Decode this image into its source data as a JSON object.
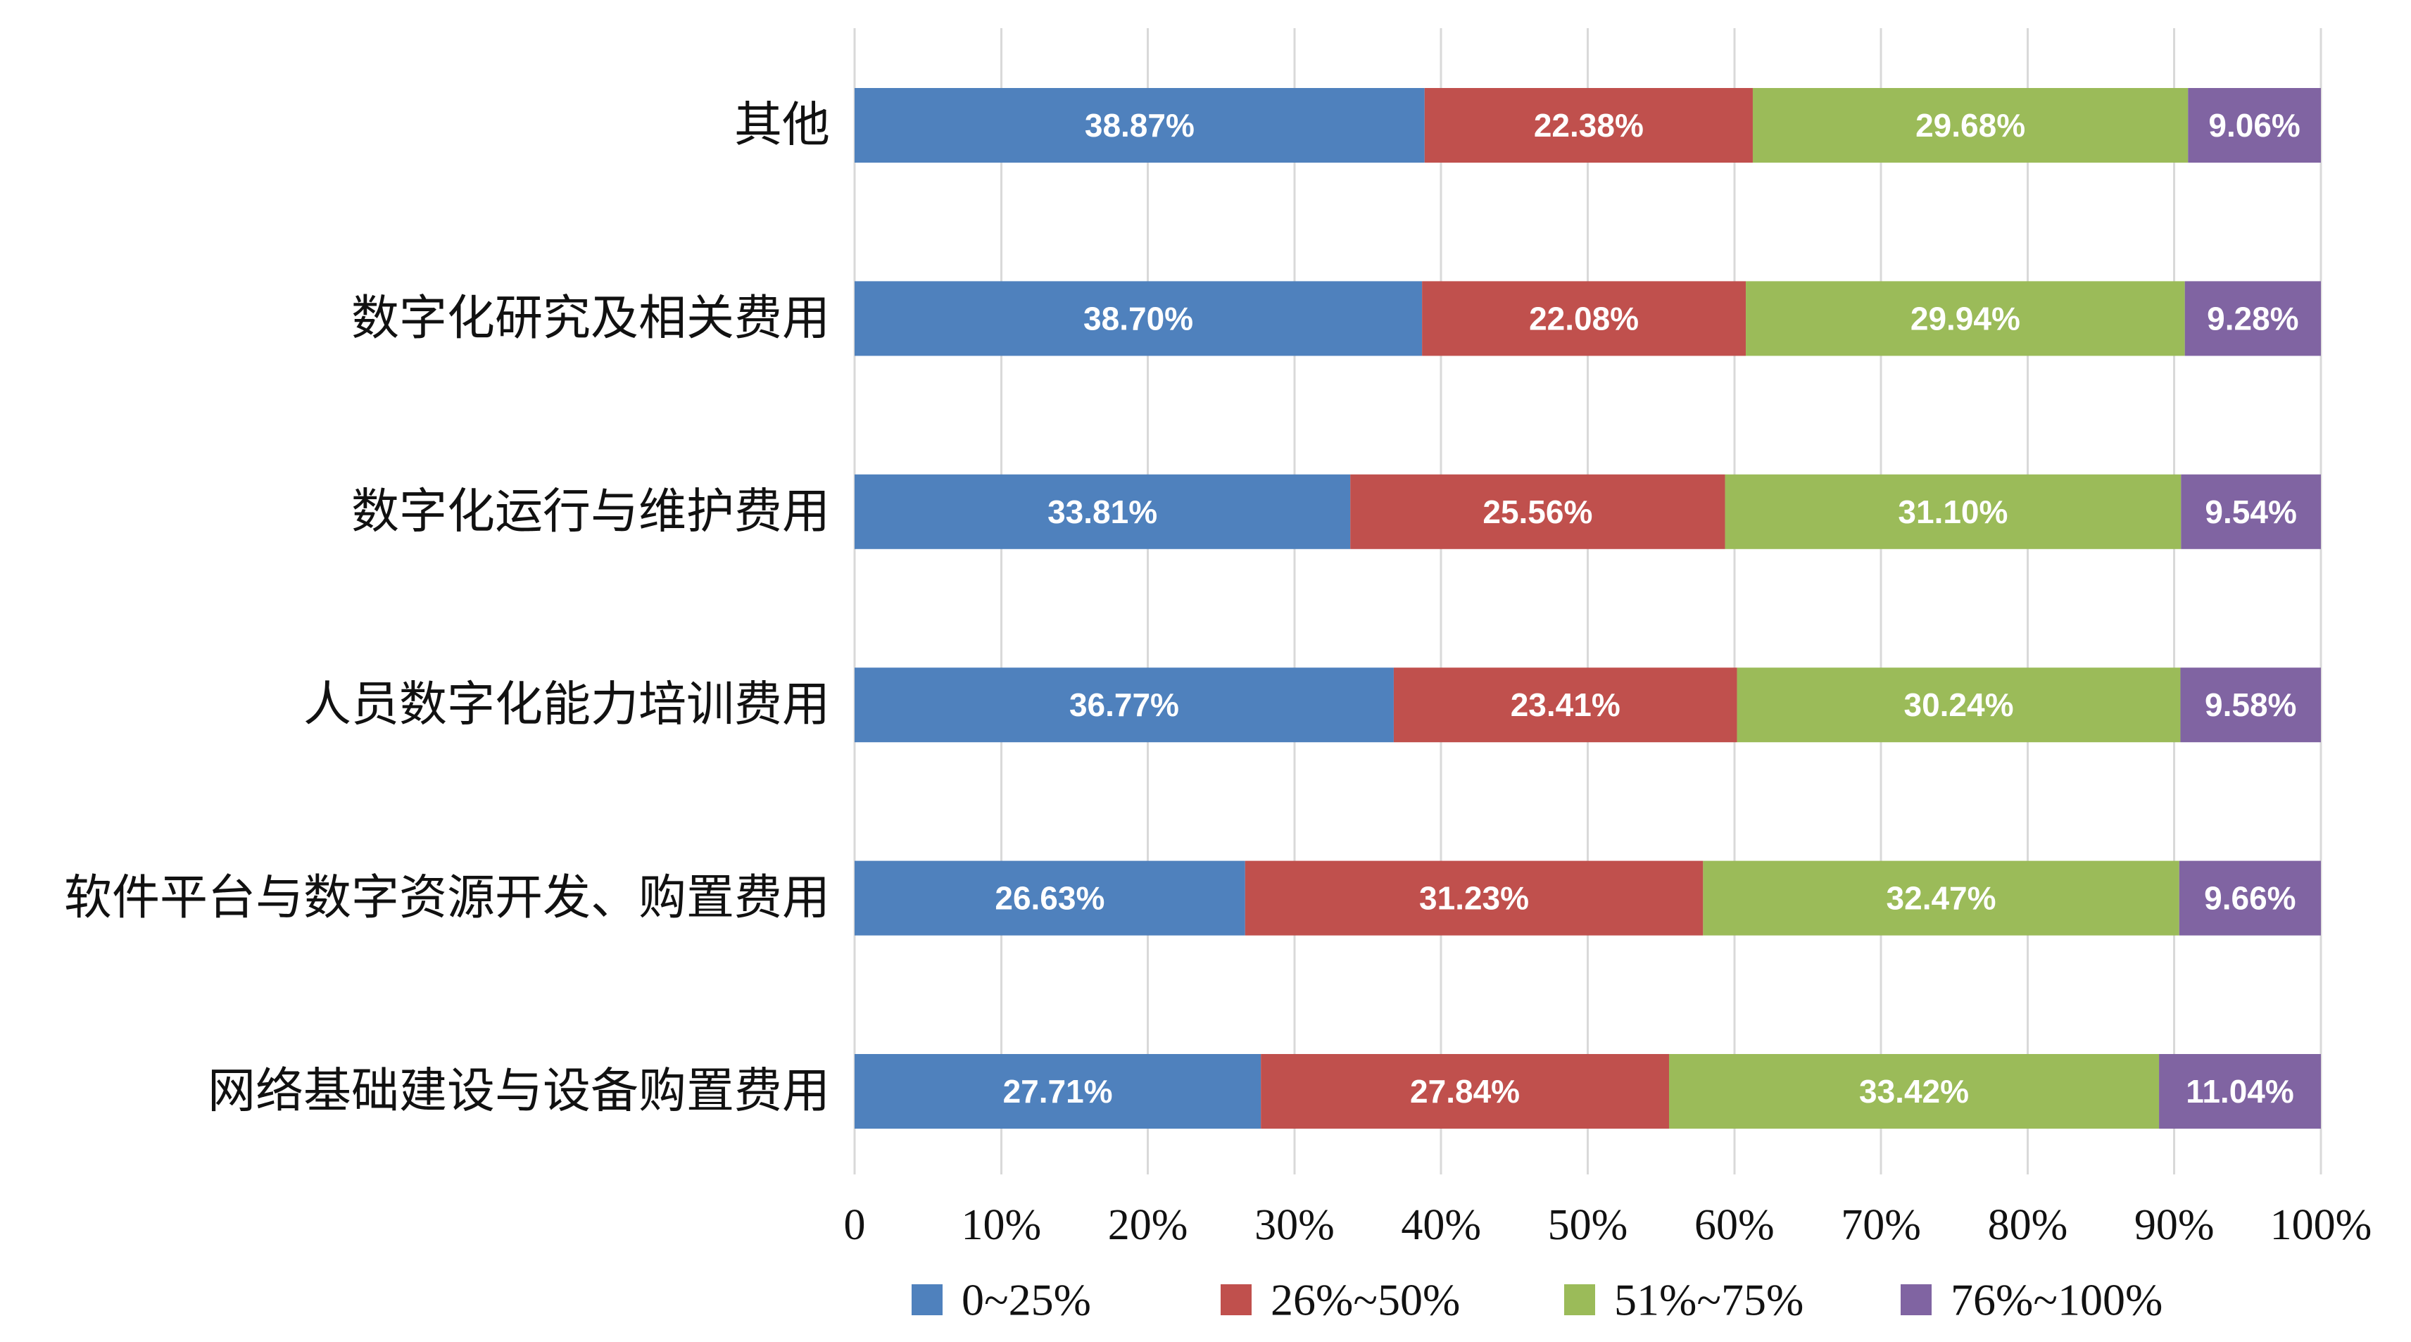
{
  "chart_data": {
    "type": "bar",
    "orientation": "horizontal",
    "stacking": "percent",
    "categories": [
      "其他",
      "数字化研究及相关费用",
      "数字化运行与维护费用",
      "人员数字化能力培训费用",
      "软件平台与数字资源开发、购置费用",
      "网络基础建设与设备购置费用"
    ],
    "series": [
      {
        "name": "0~25%",
        "color": "#4F81BD",
        "values": [
          38.87,
          38.7,
          33.81,
          36.77,
          26.63,
          27.71
        ]
      },
      {
        "name": "26%~50%",
        "color": "#C0504D",
        "values": [
          22.38,
          22.08,
          25.56,
          23.41,
          31.23,
          27.84
        ]
      },
      {
        "name": "51%~75%",
        "color": "#9BBB59",
        "values": [
          29.68,
          29.94,
          31.1,
          30.24,
          32.47,
          33.42
        ]
      },
      {
        "name": "76%~100%",
        "color": "#8064A2",
        "values": [
          9.06,
          9.28,
          9.54,
          9.58,
          9.66,
          11.04
        ]
      }
    ],
    "value_unit": "%",
    "data_labels": true,
    "xlim": [
      0,
      100
    ],
    "x_tick_labels": [
      "0",
      "10%",
      "20%",
      "30%",
      "40%",
      "50%",
      "60%",
      "70%",
      "80%",
      "90%",
      "100%"
    ],
    "grid": true,
    "legend": "bottom",
    "colors": {
      "gridline": "#D9D9D9",
      "data_label": "#FFFFFF"
    }
  }
}
